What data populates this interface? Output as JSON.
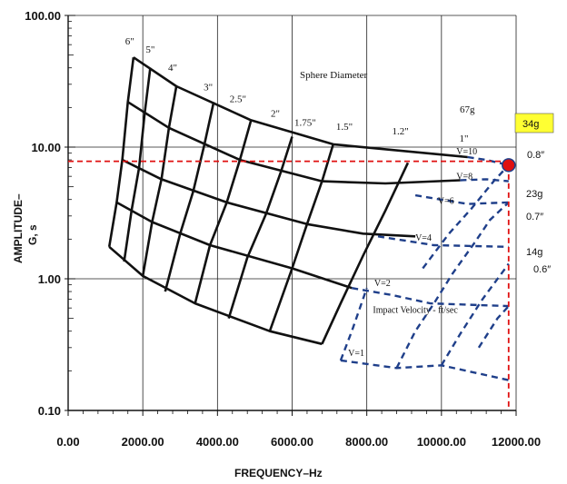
{
  "chart_data": {
    "type": "line",
    "title": "",
    "xlabel": "FREQUENCY–Hz",
    "ylabel_lines": [
      "AMPLITUDE–",
      "G, s"
    ],
    "x_scale": "linear",
    "y_scale": "log",
    "xlim": [
      0,
      12000
    ],
    "ylim": [
      0.1,
      100
    ],
    "x_ticks": [
      "0.00",
      "2000.00",
      "4000.00",
      "6000.00",
      "8000.00",
      "10000.00",
      "12000.00"
    ],
    "y_ticks": [
      "0.10",
      "1.00",
      "10.00",
      "100.00"
    ],
    "x_tick_values": [
      0,
      2000,
      4000,
      6000,
      8000,
      10000,
      12000
    ],
    "y_tick_values": [
      0.1,
      1,
      10,
      100
    ],
    "grid": true,
    "sphere_title": "Sphere Diameter",
    "diameter_curves": [
      {
        "name": "6\"",
        "points": [
          [
            1100,
            1.75
          ],
          [
            1300,
            3.8
          ],
          [
            1450,
            8
          ],
          [
            1600,
            22
          ],
          [
            1750,
            48
          ]
        ]
      },
      {
        "name": "5\"",
        "points": [
          [
            1500,
            1.35
          ],
          [
            1700,
            3.3
          ],
          [
            1900,
            7
          ],
          [
            2050,
            18
          ],
          [
            2200,
            40
          ]
        ]
      },
      {
        "name": "4\"",
        "points": [
          [
            2000,
            1.05
          ],
          [
            2250,
            2.7
          ],
          [
            2500,
            5.7
          ],
          [
            2700,
            14
          ],
          [
            2900,
            29
          ]
        ]
      },
      {
        "name": "3\"",
        "points": [
          [
            2600,
            0.8
          ],
          [
            3000,
            2.2
          ],
          [
            3350,
            4.6
          ],
          [
            3650,
            10.5
          ],
          [
            3900,
            22
          ]
        ]
      },
      {
        "name": "2.5\"",
        "points": [
          [
            3400,
            0.65
          ],
          [
            3800,
            1.8
          ],
          [
            4250,
            3.8
          ],
          [
            4600,
            8
          ],
          [
            4900,
            16
          ]
        ]
      },
      {
        "name": "2\"",
        "points": [
          [
            4300,
            0.5
          ],
          [
            4800,
            1.45
          ],
          [
            5300,
            3.1
          ],
          [
            5700,
            6.5
          ],
          [
            6000,
            12
          ]
        ]
      },
      {
        "name": "1.75\"",
        "points": [
          [
            5400,
            0.4
          ],
          [
            6000,
            1.2
          ],
          [
            6400,
            2.6
          ],
          [
            6800,
            5.5
          ],
          [
            7100,
            10.5
          ]
        ]
      },
      {
        "name": "1.5\"",
        "points": [
          [
            6800,
            0.32
          ],
          [
            7300,
            0.65
          ],
          [
            7900,
            1.5
          ],
          [
            8500,
            3.3
          ],
          [
            9100,
            7.6
          ]
        ]
      }
    ],
    "velocity_curves": [
      {
        "name": "V=10",
        "points": [
          [
            1750,
            48
          ],
          [
            2900,
            29
          ],
          [
            4900,
            16
          ],
          [
            7100,
            10.5
          ],
          [
            10700,
            8.4
          ]
        ]
      },
      {
        "name": "V=8",
        "points": [
          [
            1600,
            22
          ],
          [
            2700,
            14
          ],
          [
            4600,
            8
          ],
          [
            6800,
            5.5
          ],
          [
            8500,
            5.3
          ],
          [
            10500,
            5.6
          ]
        ]
      },
      {
        "name": "V=6",
        "points": [
          [
            1450,
            8
          ],
          [
            2500,
            5.7
          ],
          [
            4250,
            3.8
          ],
          [
            6400,
            2.6
          ],
          [
            7900,
            2.2
          ],
          [
            9300,
            2.1
          ]
        ]
      },
      {
        "name": "V=4",
        "points": [
          [
            1300,
            3.8
          ],
          [
            2250,
            2.7
          ],
          [
            3800,
            1.8
          ],
          [
            6000,
            1.2
          ],
          [
            7600,
            0.85
          ]
        ]
      },
      {
        "name": "V=2",
        "points": [
          [
            1100,
            1.75
          ],
          [
            2000,
            1.05
          ],
          [
            3400,
            0.65
          ],
          [
            5400,
            0.4
          ],
          [
            6800,
            0.32
          ]
        ]
      }
    ],
    "velocity_extensions": [
      {
        "name": "V=10",
        "points": [
          [
            10700,
            8.4
          ],
          [
            11200,
            8
          ],
          [
            11800,
            7.3
          ]
        ]
      },
      {
        "name": "V=8",
        "points": [
          [
            10500,
            5.6
          ],
          [
            11200,
            5.7
          ],
          [
            11800,
            5.5
          ]
        ]
      },
      {
        "name": "V=6",
        "points": [
          [
            9300,
            4.3
          ],
          [
            10700,
            3.7
          ],
          [
            11800,
            3.8
          ]
        ]
      },
      {
        "name": "V=4",
        "points": [
          [
            8300,
            2.1
          ],
          [
            9800,
            1.8
          ],
          [
            11800,
            1.75
          ]
        ]
      },
      {
        "name": "V=2",
        "points": [
          [
            7600,
            0.85
          ],
          [
            8700,
            0.75
          ],
          [
            9700,
            0.65
          ],
          [
            11800,
            0.62
          ]
        ]
      },
      {
        "name": "V=1",
        "points": [
          [
            7300,
            0.24
          ],
          [
            8800,
            0.21
          ],
          [
            10000,
            0.22
          ],
          [
            11800,
            0.17
          ]
        ]
      }
    ],
    "velocity_diagonals": [
      {
        "points": [
          [
            7300,
            0.24
          ],
          [
            7600,
            0.4
          ],
          [
            8000,
            0.85
          ]
        ]
      },
      {
        "points": [
          [
            8800,
            0.21
          ],
          [
            9300,
            0.4
          ],
          [
            9800,
            0.65
          ],
          [
            10300,
            1.1
          ],
          [
            10900,
            1.9
          ],
          [
            11300,
            2.8
          ],
          [
            11800,
            3.8
          ]
        ]
      },
      {
        "points": [
          [
            10000,
            0.22
          ],
          [
            10500,
            0.38
          ],
          [
            11100,
            0.7
          ],
          [
            11800,
            1.3
          ]
        ]
      },
      {
        "points": [
          [
            9500,
            1.2
          ],
          [
            10200,
            2.2
          ],
          [
            10800,
            3.4
          ],
          [
            11400,
            5.5
          ],
          [
            11800,
            7.3
          ]
        ]
      },
      {
        "points": [
          [
            11000,
            0.3
          ],
          [
            11500,
            0.5
          ],
          [
            11800,
            0.62
          ]
        ]
      }
    ],
    "diameter_labels": [
      {
        "text": "6\"",
        "x": 1650,
        "y": 60
      },
      {
        "text": "5\"",
        "x": 2200,
        "y": 52
      },
      {
        "text": "4\"",
        "x": 2800,
        "y": 38
      },
      {
        "text": "3\"",
        "x": 3750,
        "y": 27
      },
      {
        "text": "2.5\"",
        "x": 4550,
        "y": 22
      },
      {
        "text": "2\"",
        "x": 5550,
        "y": 17
      },
      {
        "text": "1.75\"",
        "x": 6350,
        "y": 14.5
      },
      {
        "text": "1.5\"",
        "x": 7400,
        "y": 13.5
      },
      {
        "text": "1.2\"",
        "x": 8900,
        "y": 12.5
      },
      {
        "text": "1\"",
        "x": 10600,
        "y": 11
      }
    ],
    "velocity_labels": [
      {
        "text": "V=10",
        "x": 10400,
        "y": 8.8
      },
      {
        "text": "V=8",
        "x": 10400,
        "y": 5.7
      },
      {
        "text": "V=6",
        "x": 9900,
        "y": 3.7
      },
      {
        "text": "V=4",
        "x": 9300,
        "y": 1.95
      },
      {
        "text": "V=2",
        "x": 8200,
        "y": 0.88
      },
      {
        "text": "V=1",
        "x": 7500,
        "y": 0.26
      }
    ],
    "impact_label": {
      "text": "Impact Velocity - ft/sec",
      "x": 9300,
      "y": 0.55
    },
    "annotations": {
      "g67": "67g",
      "g34": "34g",
      "d08": "0.8″",
      "g23": "23g",
      "d07": "0.7″",
      "g14": "14g",
      "d06": "0.6″"
    },
    "marker": {
      "x": 11800,
      "y": 7.3,
      "color": "#e01010"
    },
    "guide_lines": {
      "y_value": 7.8,
      "x_value": 11800,
      "color": "#e01010"
    },
    "colors": {
      "black_curves": "#111111",
      "blue_dashed": "#1f3f8a",
      "highlight_box": "#ffff33",
      "grid": "#222222"
    }
  }
}
